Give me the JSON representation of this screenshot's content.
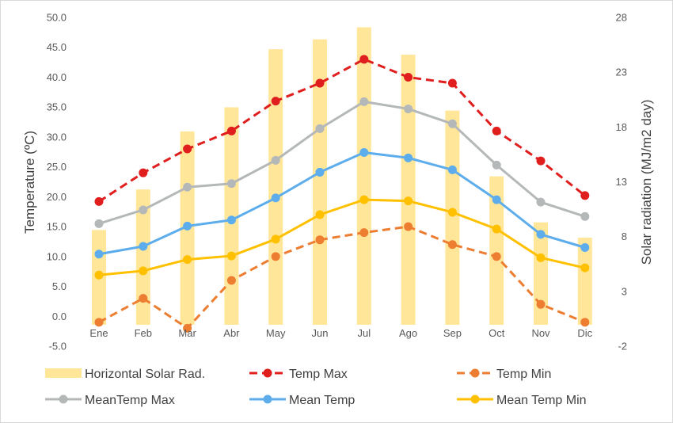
{
  "chart_data": {
    "type": "bar+line",
    "categories": [
      "Ene",
      "Feb",
      "Mar",
      "Abr",
      "May",
      "Jun",
      "Jul",
      "Ago",
      "Sep",
      "Oct",
      "Nov",
      "Dic"
    ],
    "left_axis": {
      "label": "Temperature  (ºC)",
      "min": -5,
      "max": 50,
      "step": 5,
      "tick_labels": [
        "-5.0",
        "0.0",
        "5.0",
        "10.0",
        "15.0",
        "20.0",
        "25.0",
        "30.0",
        "35.0",
        "40.0",
        "45.0",
        "50.0"
      ]
    },
    "right_axis": {
      "label": "Solar radiation (MJ/m2 day)",
      "min": -2,
      "max": 28,
      "step": 5,
      "tick_labels": [
        "-2",
        "3",
        "8",
        "13",
        "18",
        "23",
        "28"
      ]
    },
    "series": [
      {
        "name": "Horizontal Solar Rad.",
        "kind": "bar",
        "axis": "right",
        "color": "#FFE699",
        "values": [
          8.6,
          12.3,
          17.6,
          19.8,
          25.1,
          26.0,
          27.1,
          24.6,
          19.5,
          13.5,
          9.3,
          7.9
        ]
      },
      {
        "name": "Temp Max",
        "kind": "line",
        "axis": "left",
        "color": "#E01E1E",
        "dash": true,
        "values": [
          19.2,
          24.0,
          28.0,
          31.0,
          36.0,
          39.0,
          43.0,
          40.0,
          39.0,
          31.0,
          26.0,
          20.2
        ]
      },
      {
        "name": "Temp Min",
        "kind": "line",
        "axis": "left",
        "color": "#ED7D31",
        "dash": true,
        "values": [
          -1.0,
          3.0,
          -2.0,
          6.0,
          10.0,
          12.8,
          14.0,
          15.0,
          12.0,
          10.0,
          2.0,
          -1.0
        ]
      },
      {
        "name": "MeanTemp Max",
        "kind": "line",
        "axis": "left",
        "color": "#B4B8B8",
        "dash": false,
        "values": [
          15.5,
          17.8,
          21.6,
          22.2,
          26.1,
          31.4,
          35.9,
          34.7,
          32.2,
          25.3,
          19.1,
          16.7
        ]
      },
      {
        "name": "Mean Temp",
        "kind": "line",
        "axis": "left",
        "color": "#5DADEC",
        "dash": false,
        "values": [
          10.4,
          11.7,
          15.1,
          16.1,
          19.8,
          24.1,
          27.4,
          26.5,
          24.5,
          19.5,
          13.7,
          11.5
        ]
      },
      {
        "name": "Mean Temp Min",
        "kind": "line",
        "axis": "left",
        "color": "#FFC000",
        "dash": false,
        "values": [
          6.9,
          7.6,
          9.5,
          10.1,
          12.9,
          17.0,
          19.5,
          19.3,
          17.4,
          14.6,
          9.8,
          8.1
        ]
      }
    ],
    "grid": false,
    "legend_position": "bottom"
  }
}
